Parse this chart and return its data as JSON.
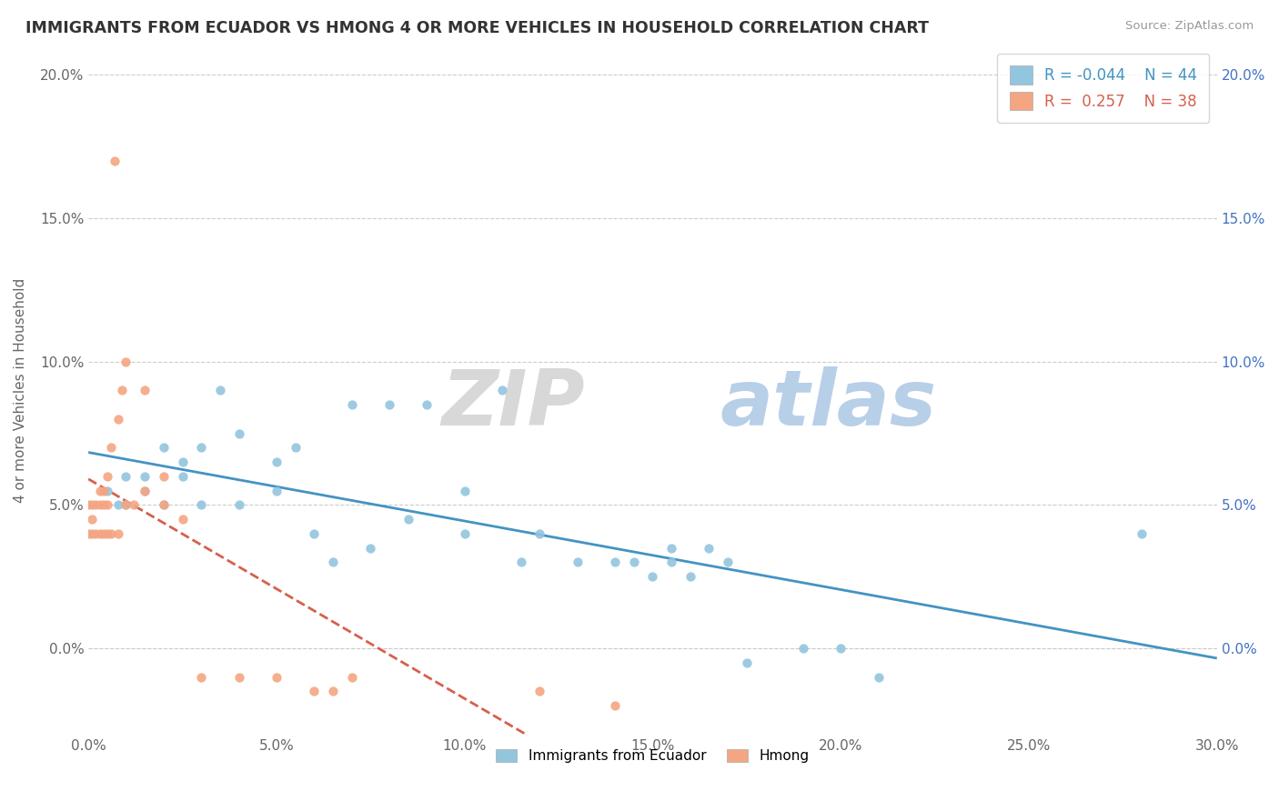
{
  "title": "IMMIGRANTS FROM ECUADOR VS HMONG 4 OR MORE VEHICLES IN HOUSEHOLD CORRELATION CHART",
  "source": "Source: ZipAtlas.com",
  "ylabel": "4 or more Vehicles in Household",
  "xlim": [
    0.0,
    0.3
  ],
  "ylim": [
    -0.03,
    0.21
  ],
  "xticks": [
    0.0,
    0.05,
    0.1,
    0.15,
    0.2,
    0.25,
    0.3
  ],
  "xtick_labels": [
    "0.0%",
    "5.0%",
    "10.0%",
    "15.0%",
    "20.0%",
    "25.0%",
    "30.0%"
  ],
  "yticks": [
    0.0,
    0.05,
    0.1,
    0.15,
    0.2
  ],
  "ytick_labels": [
    "0.0%",
    "5.0%",
    "10.0%",
    "15.0%",
    "20.0%"
  ],
  "legend_R1": "-0.044",
  "legend_N1": "44",
  "legend_R2": "0.257",
  "legend_N2": "38",
  "color_ecuador": "#92c5de",
  "color_hmong": "#f4a582",
  "color_ecuador_line": "#4393c3",
  "color_hmong_line": "#d6604d",
  "ecuador_x": [
    0.005,
    0.008,
    0.01,
    0.01,
    0.015,
    0.015,
    0.02,
    0.02,
    0.025,
    0.025,
    0.03,
    0.03,
    0.035,
    0.04,
    0.04,
    0.05,
    0.05,
    0.055,
    0.06,
    0.065,
    0.07,
    0.075,
    0.08,
    0.085,
    0.09,
    0.1,
    0.1,
    0.11,
    0.115,
    0.12,
    0.13,
    0.14,
    0.145,
    0.15,
    0.155,
    0.155,
    0.16,
    0.165,
    0.17,
    0.175,
    0.19,
    0.2,
    0.21,
    0.28
  ],
  "ecuador_y": [
    0.055,
    0.05,
    0.05,
    0.06,
    0.055,
    0.06,
    0.05,
    0.07,
    0.06,
    0.065,
    0.05,
    0.07,
    0.09,
    0.05,
    0.075,
    0.055,
    0.065,
    0.07,
    0.04,
    0.03,
    0.085,
    0.035,
    0.085,
    0.045,
    0.085,
    0.04,
    0.055,
    0.09,
    0.03,
    0.04,
    0.03,
    0.03,
    0.03,
    0.025,
    0.03,
    0.035,
    0.025,
    0.035,
    0.03,
    -0.005,
    0.0,
    0.0,
    -0.01,
    0.04
  ],
  "hmong_x": [
    0.0,
    0.0,
    0.001,
    0.001,
    0.001,
    0.002,
    0.002,
    0.003,
    0.003,
    0.003,
    0.004,
    0.004,
    0.004,
    0.005,
    0.005,
    0.005,
    0.006,
    0.006,
    0.007,
    0.008,
    0.008,
    0.009,
    0.01,
    0.01,
    0.012,
    0.015,
    0.015,
    0.02,
    0.02,
    0.025,
    0.03,
    0.04,
    0.05,
    0.06,
    0.065,
    0.07,
    0.12,
    0.14
  ],
  "hmong_y": [
    0.04,
    0.05,
    0.04,
    0.045,
    0.05,
    0.04,
    0.05,
    0.04,
    0.05,
    0.055,
    0.04,
    0.05,
    0.055,
    0.04,
    0.05,
    0.06,
    0.04,
    0.07,
    0.17,
    0.04,
    0.08,
    0.09,
    0.05,
    0.1,
    0.05,
    0.055,
    0.09,
    0.05,
    0.06,
    0.045,
    -0.01,
    -0.01,
    -0.01,
    -0.015,
    -0.015,
    -0.01,
    -0.015,
    -0.02
  ],
  "watermark_zip": "ZIP",
  "watermark_atlas": "atlas",
  "background_color": "#ffffff"
}
